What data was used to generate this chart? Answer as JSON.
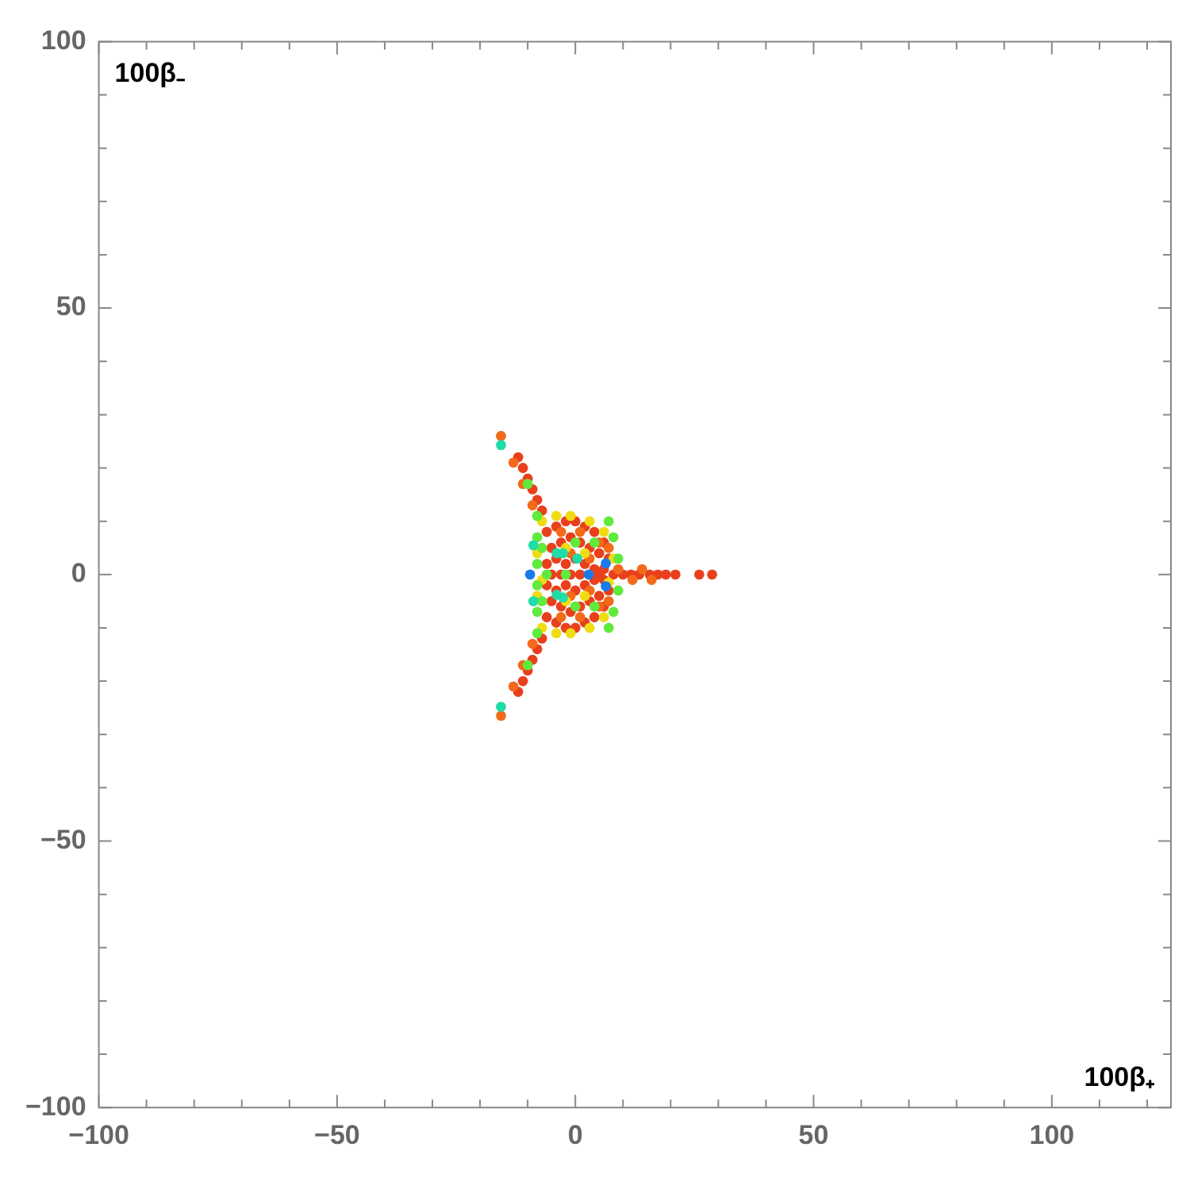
{
  "chart_data": {
    "type": "scatter",
    "xlabel": "100β₊",
    "ylabel": "100β₋",
    "xlim": [
      -100,
      125
    ],
    "ylim": [
      -100,
      100
    ],
    "xticks": [
      -100,
      {
        "value": -90,
        "label": null
      },
      {
        "value": -80,
        "label": null
      },
      {
        "value": -70,
        "label": null
      },
      {
        "value": -60,
        "label": null
      },
      -50,
      {
        "value": -40,
        "label": null
      },
      {
        "value": -30,
        "label": null
      },
      {
        "value": -20,
        "label": null
      },
      {
        "value": -10,
        "label": null
      },
      0,
      {
        "value": 10,
        "label": null
      },
      {
        "value": 20,
        "label": null
      },
      {
        "value": 30,
        "label": null
      },
      {
        "value": 40,
        "label": null
      },
      50,
      {
        "value": 60,
        "label": null
      },
      {
        "value": 70,
        "label": null
      },
      {
        "value": 80,
        "label": null
      },
      {
        "value": 90,
        "label": null
      },
      100,
      {
        "value": 110,
        "label": null
      },
      {
        "value": 120,
        "label": null
      }
    ],
    "yticks": [
      -100,
      {
        "value": -90,
        "label": null
      },
      {
        "value": -80,
        "label": null
      },
      {
        "value": -70,
        "label": null
      },
      {
        "value": -60,
        "label": null
      },
      -50,
      {
        "value": -40,
        "label": null
      },
      {
        "value": -30,
        "label": null
      },
      {
        "value": -20,
        "label": null
      },
      {
        "value": -10,
        "label": null
      },
      0,
      {
        "value": 10,
        "label": null
      },
      {
        "value": 20,
        "label": null
      },
      {
        "value": 30,
        "label": null
      },
      {
        "value": 40,
        "label": null
      },
      50,
      {
        "value": 60,
        "label": null
      },
      {
        "value": 70,
        "label": null
      },
      {
        "value": 80,
        "label": null
      },
      {
        "value": 90,
        "label": null
      },
      100
    ],
    "grid": false,
    "legend": false,
    "marker": "circle",
    "series": [
      {
        "color": "#1a7ae8",
        "x": [
          -9.5,
          2.8,
          6.4,
          6.4
        ],
        "values": [
          0,
          0,
          2.1,
          -2.2
        ]
      },
      {
        "color": "#20dca8",
        "x": [
          -15.6,
          -15.6,
          -8.8,
          -8.8,
          -3.9,
          -2.6,
          0.4,
          -3.9,
          -2.6
        ],
        "values": [
          24.3,
          -24.8,
          5.5,
          -5,
          4,
          4,
          3,
          -3.8,
          -4.3
        ]
      },
      {
        "color": "#60ea3c",
        "x": [
          -8,
          -8,
          -8,
          -8,
          -7,
          -7,
          -6,
          -10,
          -10,
          -8,
          -8,
          7,
          8,
          7,
          8,
          9,
          9,
          0,
          0,
          4,
          4,
          -2
        ],
        "values": [
          7,
          2,
          -2,
          -7,
          5,
          -5,
          0,
          17,
          -17,
          11,
          -11,
          10,
          7,
          -10,
          -7,
          -3,
          3,
          6,
          -6,
          6,
          -6,
          0
        ]
      },
      {
        "color": "#f0dc14",
        "x": [
          -7,
          -4,
          -1,
          3,
          -8,
          -7,
          -8,
          -7,
          -4,
          -1,
          3,
          6,
          6,
          -2,
          2,
          -2,
          2,
          8,
          7
        ],
        "values": [
          10,
          11,
          11,
          10,
          4,
          -1,
          -4,
          -10,
          -11,
          -11,
          -10,
          8,
          -8,
          5,
          4,
          -5,
          -4,
          3,
          -1.5
        ]
      },
      {
        "color": "#f26a1a",
        "x": [
          -13,
          -11,
          -9,
          -13,
          -11,
          -9,
          -15.6,
          -15.6,
          9,
          12,
          14,
          16,
          -3,
          1,
          5,
          -3,
          1,
          5,
          -1,
          3,
          -1,
          3,
          7,
          7
        ],
        "values": [
          21,
          17,
          13,
          -21,
          -17,
          -13,
          26,
          -26.5,
          1,
          -1,
          1,
          -1,
          8,
          8,
          6,
          -8,
          -8,
          -6,
          4,
          3,
          -4,
          -3,
          5,
          -5
        ]
      },
      {
        "color": "#e8401c",
        "x": [
          -6,
          -4,
          -2,
          0,
          2,
          4,
          6,
          -5,
          -3,
          -1,
          1,
          3,
          5,
          7,
          -6,
          -4,
          -2,
          0,
          2,
          4,
          6,
          8,
          -5,
          -3,
          -1,
          1,
          5,
          -6,
          -4,
          -2,
          0,
          2,
          4,
          6,
          -5,
          -3,
          -1,
          1,
          3,
          5,
          7,
          -6,
          -4,
          -2,
          0,
          2,
          4,
          6,
          -12,
          -11,
          -10,
          -9,
          -8,
          -7,
          -12,
          -11,
          -10,
          -9,
          -8,
          -7,
          10,
          11.7,
          13.4,
          15.6,
          17.3,
          19,
          21,
          26,
          28.7
        ],
        "values": [
          8,
          9,
          10,
          10,
          9,
          8,
          6,
          5,
          6,
          7,
          6,
          5,
          4,
          3,
          2,
          3,
          2,
          3,
          2,
          1,
          1,
          0,
          0,
          0,
          0,
          0,
          0,
          -2,
          -3,
          -2,
          -3,
          -2,
          -1,
          -1,
          -5,
          -6,
          -7,
          -6,
          -5,
          -4,
          -3,
          -8,
          -9,
          -10,
          -10,
          -9,
          -8,
          -6,
          22,
          20,
          18,
          16,
          14,
          12,
          -22,
          -20,
          -18,
          -16,
          -14,
          -12,
          0,
          0,
          0,
          0,
          0,
          0,
          0,
          0,
          0
        ]
      }
    ]
  }
}
